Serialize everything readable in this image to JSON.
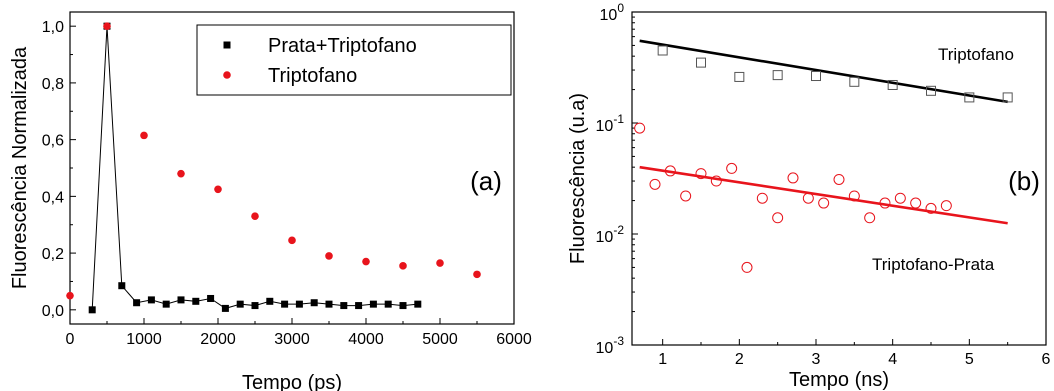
{
  "chart_data": [
    {
      "type": "scatter",
      "panel_label": "(a)",
      "xlabel": "Tempo (ps)",
      "ylabel": "Fluorescência Normalizada",
      "xlim": [
        0,
        6000
      ],
      "ylim": [
        -0.05,
        1.05
      ],
      "xticks": [
        0,
        1000,
        2000,
        3000,
        4000,
        5000,
        6000
      ],
      "yticks": [
        0.0,
        0.2,
        0.4,
        0.6,
        0.8,
        1.0
      ],
      "xtick_labels": [
        "0",
        "1000",
        "2000",
        "3000",
        "4000",
        "5000",
        "6000"
      ],
      "ytick_labels": [
        "0,0",
        "0,2",
        "0,4",
        "0,6",
        "0,8",
        "1,0"
      ],
      "legend_position": "top-right",
      "series": [
        {
          "name": "Prata+Triptofano",
          "marker": "square",
          "connected": true,
          "color": "#000000",
          "x": [
            300,
            500,
            700,
            900,
            1100,
            1300,
            1500,
            1700,
            1900,
            2100,
            2300,
            2500,
            2700,
            2900,
            3100,
            3300,
            3500,
            3700,
            3900,
            4100,
            4300,
            4500,
            4700
          ],
          "y": [
            0.0,
            1.0,
            0.085,
            0.025,
            0.035,
            0.02,
            0.035,
            0.03,
            0.04,
            0.005,
            0.02,
            0.015,
            0.03,
            0.02,
            0.02,
            0.025,
            0.02,
            0.015,
            0.015,
            0.02,
            0.02,
            0.015,
            0.02
          ]
        },
        {
          "name": "Triptofano",
          "marker": "circle",
          "connected": false,
          "color": "#e8141c",
          "x": [
            0,
            500,
            1000,
            1500,
            2000,
            2500,
            3000,
            3500,
            4000,
            4500,
            5000,
            5500
          ],
          "y": [
            0.05,
            1.0,
            0.615,
            0.48,
            0.425,
            0.33,
            0.245,
            0.19,
            0.17,
            0.155,
            0.165,
            0.125
          ]
        }
      ]
    },
    {
      "type": "scatter",
      "panel_label": "(b)",
      "xlabel": "Tempo (ns)",
      "ylabel": "Fluorescência (u.a)",
      "yscale": "log",
      "xlim": [
        0.6,
        6
      ],
      "ylim": [
        0.001,
        1
      ],
      "xticks": [
        1,
        2,
        3,
        4,
        5,
        6
      ],
      "xtick_labels": [
        "1",
        "2",
        "3",
        "4",
        "5",
        "6"
      ],
      "ytick_exponents": [
        "-3",
        "-2",
        "-1",
        "0"
      ],
      "ytick_base": "10",
      "series": [
        {
          "name": "Triptofano",
          "marker": "open-square",
          "color": "#000000",
          "x": [
            1.0,
            1.5,
            2.0,
            2.5,
            3.0,
            3.5,
            4.0,
            4.5,
            5.0,
            5.5
          ],
          "y": [
            0.45,
            0.35,
            0.26,
            0.27,
            0.265,
            0.235,
            0.22,
            0.195,
            0.17,
            0.17
          ],
          "fit": {
            "x": [
              0.7,
              5.5
            ],
            "y": [
              0.55,
              0.155
            ]
          }
        },
        {
          "name": "Triptofano-Prata",
          "marker": "open-circle",
          "color": "#e8141c",
          "x": [
            0.7,
            0.9,
            1.1,
            1.3,
            1.5,
            1.7,
            1.9,
            2.1,
            2.3,
            2.5,
            2.7,
            2.9,
            3.1,
            3.3,
            3.5,
            3.7,
            3.9,
            4.1,
            4.3,
            4.5,
            4.7
          ],
          "y": [
            0.09,
            0.028,
            0.037,
            0.022,
            0.035,
            0.03,
            0.039,
            0.005,
            0.021,
            0.014,
            0.032,
            0.021,
            0.019,
            0.031,
            0.022,
            0.014,
            0.019,
            0.021,
            0.019,
            0.017,
            0.018
          ],
          "fit": {
            "x": [
              0.7,
              5.5
            ],
            "y": [
              0.04,
              0.0125
            ]
          }
        }
      ]
    }
  ]
}
